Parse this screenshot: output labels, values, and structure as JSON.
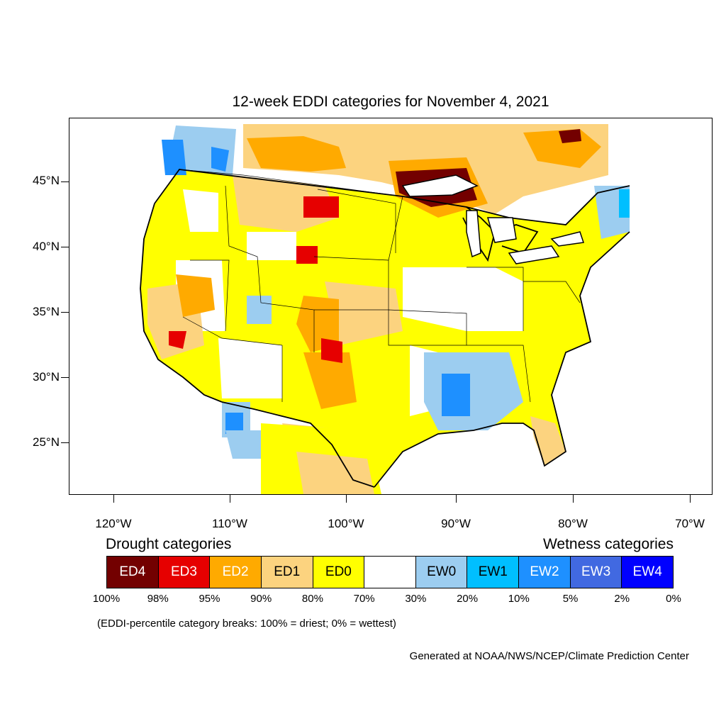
{
  "title": "12-week EDDI categories for November 4, 2021",
  "lat_labels": [
    "45°N",
    "40°N",
    "35°N",
    "30°N",
    "25°N"
  ],
  "lon_labels": [
    "120°W",
    "110°W",
    "100°W",
    "90°W",
    "80°W",
    "70°W"
  ],
  "drought_title": "Drought categories",
  "wetness_title": "Wetness categories",
  "legend": [
    {
      "label": "ED4",
      "color": "#730000",
      "text_color": "#ffffff"
    },
    {
      "label": "ED3",
      "color": "#e60000",
      "text_color": "#ffffff"
    },
    {
      "label": "ED2",
      "color": "#ffaa00",
      "text_color": "#ffffff"
    },
    {
      "label": "ED1",
      "color": "#fcd37f",
      "text_color": "#000000"
    },
    {
      "label": "ED0",
      "color": "#ffff00",
      "text_color": "#000000"
    },
    {
      "label": "",
      "color": "#ffffff",
      "text_color": "#000000"
    },
    {
      "label": "EW0",
      "color": "#9ccdf0",
      "text_color": "#000000"
    },
    {
      "label": "EW1",
      "color": "#00bfff",
      "text_color": "#000000"
    },
    {
      "label": "EW2",
      "color": "#1e90ff",
      "text_color": "#ffffff"
    },
    {
      "label": "EW3",
      "color": "#4169e1",
      "text_color": "#ffffff"
    },
    {
      "label": "EW4",
      "color": "#0000ff",
      "text_color": "#ffffff"
    }
  ],
  "percentile_breaks": [
    "100%",
    "98%",
    "95%",
    "90%",
    "80%",
    "70%",
    "30%",
    "20%",
    "10%",
    "5%",
    "2%",
    "0%"
  ],
  "note": "(EDDI-percentile category breaks: 100% = driest; 0% = wettest)",
  "credit": "Generated at NOAA/NWS/NCEP/Climate Prediction Center"
}
